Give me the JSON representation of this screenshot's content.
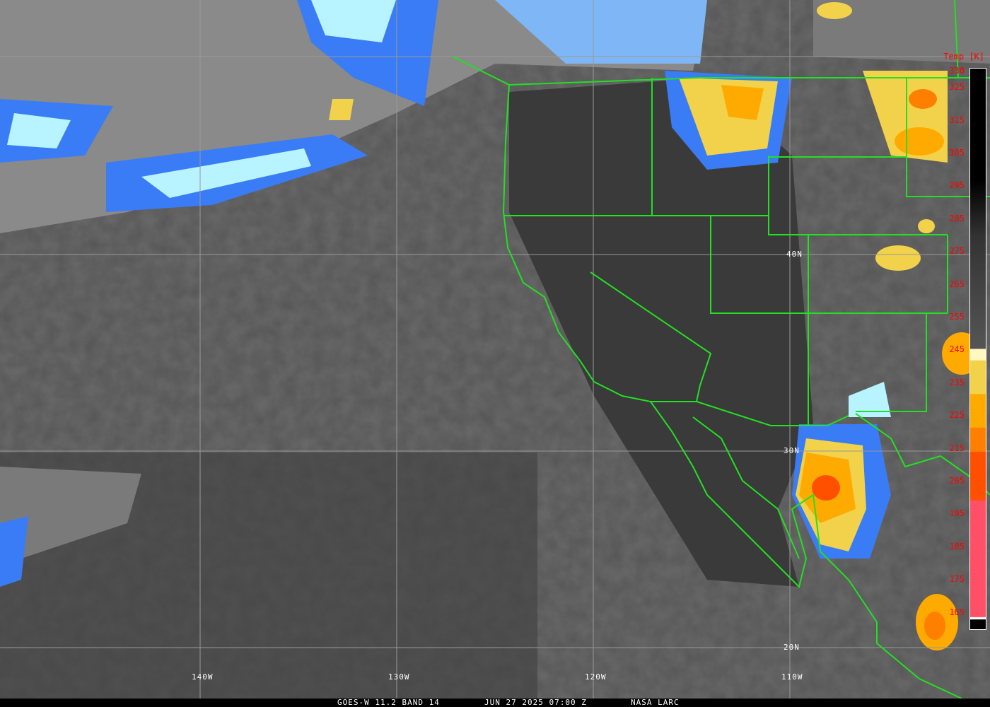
{
  "colorbar": {
    "title": "Temp [K]",
    "ticks": [
      "330",
      "325",
      "315",
      "305",
      "295",
      "285",
      "275",
      "265",
      "255",
      "245",
      "235",
      "225",
      "215",
      "205",
      "195",
      "185",
      "175",
      "165"
    ],
    "colors": {
      "cold_blue": "#3a7cf5",
      "light_blue": "#7fb6f5",
      "pale_cyan": "#b8f4ff",
      "pale_yellow": "#fff8c0",
      "yellow": "#f2d24a",
      "amber": "#ffaa00",
      "orange": "#ff7f00",
      "red_orange": "#ff5000",
      "pink": "#ff5068"
    }
  },
  "grid_labels": {
    "lon": [
      "140W",
      "130W",
      "120W",
      "110W"
    ],
    "lat": [
      "40N",
      "30N",
      "20N"
    ]
  },
  "caption": {
    "satellite": "GOES-W 11.2 BAND 14",
    "datetime": "JUN 27 2025 07:00 Z",
    "source": "NASA LARC"
  },
  "border_color": "#22e022"
}
